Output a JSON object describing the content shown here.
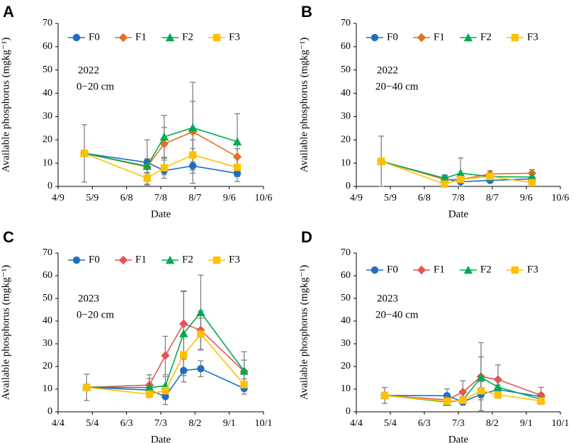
{
  "chart_data": [
    {
      "panel": "A",
      "type": "line",
      "year_label": "2022",
      "depth_label": "0−20 cm",
      "ylabel": "Available phosphorus (mgkg⁻¹)",
      "xlabel": "Date",
      "ylim": [
        0,
        70
      ],
      "yticks": [
        "0",
        "10",
        "20",
        "30",
        "40",
        "50",
        "60",
        "70"
      ],
      "xlim": [
        0,
        180
      ],
      "xticks": [
        {
          "label": "4/9",
          "value": 0
        },
        {
          "label": "5/9",
          "value": 30
        },
        {
          "label": "6/8",
          "value": 60
        },
        {
          "label": "7/8",
          "value": 90
        },
        {
          "label": "8/7",
          "value": 120
        },
        {
          "label": "9/6",
          "value": 150
        },
        {
          "label": "10/6",
          "value": 180
        }
      ],
      "x": [
        23,
        78,
        93,
        118,
        157
      ],
      "series": [
        {
          "name": "F0",
          "color": "#1f6fbf",
          "marker": "circle",
          "values": [
            14.2,
            10.3,
            6.8,
            8.8,
            5.6
          ],
          "err": [
            12.3,
            9.7,
            1.8,
            7.5,
            3.5
          ]
        },
        {
          "name": "F1",
          "color": "#e2701f",
          "marker": "diamond",
          "values": [
            14.2,
            8.4,
            18.3,
            23.5,
            12.7
          ],
          "err": [
            0,
            3.5,
            7.0,
            13.0,
            3.5
          ]
        },
        {
          "name": "F2",
          "color": "#00aa50",
          "marker": "triangle",
          "values": [
            14.2,
            8.7,
            21.3,
            25.2,
            19.2
          ],
          "err": [
            0,
            3.0,
            9.2,
            19.5,
            12.0
          ]
        },
        {
          "name": "F3",
          "color": "#ffc000",
          "marker": "square",
          "values": [
            14.2,
            3.5,
            8.0,
            13.5,
            8.2
          ],
          "err": [
            0,
            2.5,
            4.5,
            6.5,
            4.0
          ]
        }
      ]
    },
    {
      "panel": "B",
      "type": "line",
      "year_label": "2022",
      "depth_label": "20−40 cm",
      "ylabel": "Available phosphorus (mgkg⁻¹)",
      "xlabel": "Date",
      "ylim": [
        0,
        70
      ],
      "yticks": [
        "0",
        "10",
        "20",
        "30",
        "40",
        "50",
        "60",
        "70"
      ],
      "xlim": [
        0,
        180
      ],
      "xticks": [
        {
          "label": "4/9",
          "value": 0
        },
        {
          "label": "5/9",
          "value": 30
        },
        {
          "label": "6/8",
          "value": 60
        },
        {
          "label": "7/8",
          "value": 90
        },
        {
          "label": "8/7",
          "value": 120
        },
        {
          "label": "9/6",
          "value": 150
        },
        {
          "label": "10/6",
          "value": 180
        }
      ],
      "x": [
        22,
        78,
        92,
        118,
        155
      ],
      "series": [
        {
          "name": "F0",
          "color": "#1f6fbf",
          "marker": "circle",
          "values": [
            10.8,
            3.2,
            2.0,
            2.6,
            3.2
          ],
          "err": [
            10.8,
            1.5,
            2.5,
            1.0,
            1.0
          ]
        },
        {
          "name": "F1",
          "color": "#e2701f",
          "marker": "diamond",
          "values": [
            10.8,
            3.0,
            3.0,
            5.3,
            5.7
          ],
          "err": [
            0,
            1.5,
            1.5,
            1.5,
            1.5
          ]
        },
        {
          "name": "F2",
          "color": "#00aa50",
          "marker": "triangle",
          "values": [
            10.8,
            3.5,
            5.7,
            4.2,
            4.0
          ],
          "err": [
            0,
            1.5,
            6.5,
            1.5,
            1.0
          ]
        },
        {
          "name": "F3",
          "color": "#ffc000",
          "marker": "square",
          "values": [
            10.8,
            1.0,
            3.0,
            4.3,
            1.6
          ],
          "err": [
            0,
            0.5,
            1.0,
            1.0,
            0.5
          ]
        }
      ]
    },
    {
      "panel": "C",
      "type": "line",
      "year_label": "2023",
      "depth_label": "0−20 cm",
      "ylabel": "Available phosphorus (mgkg⁻¹)",
      "xlabel": "Date",
      "ylim": [
        0,
        70
      ],
      "yticks": [
        "0",
        "10",
        "20",
        "30",
        "40",
        "50",
        "60",
        "70"
      ],
      "xlim": [
        0,
        180
      ],
      "xticks": [
        {
          "label": "4/4",
          "value": 0
        },
        {
          "label": "5/4",
          "value": 30
        },
        {
          "label": "6/3",
          "value": 60
        },
        {
          "label": "7/3",
          "value": 90
        },
        {
          "label": "8/2",
          "value": 120
        },
        {
          "label": "9/1",
          "value": 150
        },
        {
          "label": "10/1",
          "value": 180
        }
      ],
      "x": [
        25,
        80,
        94,
        110,
        125,
        163
      ],
      "series": [
        {
          "name": "F0",
          "color": "#1f6fbf",
          "marker": "circle",
          "values": [
            10.8,
            9.6,
            6.7,
            18.2,
            19.0,
            10.3
          ],
          "err": [
            5.8,
            2.5,
            3.5,
            5.0,
            3.5,
            2.5
          ]
        },
        {
          "name": "F1",
          "color": "#e65555",
          "marker": "diamond",
          "values": [
            10.8,
            11.8,
            24.8,
            38.8,
            36.0,
            17.8
          ],
          "err": [
            0,
            4.5,
            8.5,
            14.5,
            8.5,
            5.0
          ]
        },
        {
          "name": "F2",
          "color": "#00aa50",
          "marker": "triangle",
          "values": [
            10.8,
            10.7,
            11.5,
            34.5,
            43.8,
            18.0
          ],
          "err": [
            0,
            4.0,
            4.0,
            18.5,
            16.5,
            8.5
          ]
        },
        {
          "name": "F3",
          "color": "#ffc000",
          "marker": "square",
          "values": [
            10.8,
            7.8,
            9.3,
            25.1,
            34.3,
            12.0
          ],
          "err": [
            0,
            1.5,
            1.5,
            8.0,
            7.0,
            2.5
          ]
        }
      ]
    },
    {
      "panel": "D",
      "type": "line",
      "year_label": "2023",
      "depth_label": "20−40 cm",
      "ylabel": "Available phosphorus (mgkg⁻¹)",
      "xlabel": "Date",
      "ylim": [
        0,
        70
      ],
      "yticks": [
        "0",
        "10",
        "20",
        "30",
        "40",
        "50",
        "60",
        "70"
      ],
      "xlim": [
        0,
        180
      ],
      "xticks": [
        {
          "label": "4/4",
          "value": 0
        },
        {
          "label": "5/4",
          "value": 30
        },
        {
          "label": "6/3",
          "value": 60
        },
        {
          "label": "7/3",
          "value": 90
        },
        {
          "label": "8/2",
          "value": 120
        },
        {
          "label": "9/1",
          "value": 150
        },
        {
          "label": "10/1",
          "value": 180
        }
      ],
      "x": [
        25,
        80,
        94,
        110,
        125,
        163
      ],
      "series": [
        {
          "name": "F0",
          "color": "#1f6fbf",
          "marker": "circle",
          "values": [
            7.2,
            7.1,
            4.4,
            7.7,
            9.8,
            6.7
          ],
          "err": [
            3.5,
            3.0,
            1.5,
            7.5,
            2.0,
            1.5
          ]
        },
        {
          "name": "F1",
          "color": "#e65555",
          "marker": "diamond",
          "values": [
            7.2,
            5.3,
            8.7,
            15.5,
            14.2,
            7.3
          ],
          "err": [
            0,
            1.5,
            5.0,
            15.0,
            6.5,
            3.5
          ]
        },
        {
          "name": "F2",
          "color": "#00aa50",
          "marker": "triangle",
          "values": [
            7.2,
            4.3,
            5.1,
            15.2,
            10.9,
            5.5
          ],
          "err": [
            0,
            1.5,
            1.5,
            9.0,
            3.0,
            1.5
          ]
        },
        {
          "name": "F3",
          "color": "#ffc000",
          "marker": "square",
          "values": [
            7.2,
            4.6,
            5.1,
            9.3,
            7.5,
            4.8
          ],
          "err": [
            0,
            1.0,
            1.5,
            4.0,
            1.5,
            1.5
          ]
        }
      ]
    }
  ]
}
